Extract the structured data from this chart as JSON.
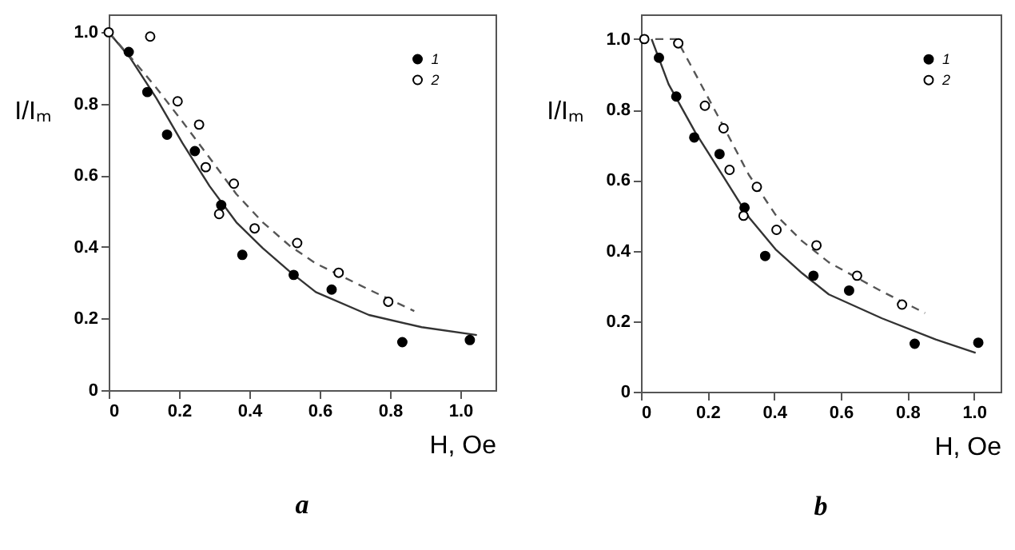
{
  "chart_data": [
    {
      "type": "scatter",
      "title": "a",
      "xlabel": "H, Oe",
      "ylabel": "I/Iₘ",
      "xlim": [
        0,
        1.1
      ],
      "ylim": [
        0,
        1.05
      ],
      "xticks": [
        0,
        0.2,
        0.4,
        0.6,
        0.8,
        {
          "value": 1,
          "label": "1.0"
        }
      ],
      "yticks": [
        0,
        0.2,
        0.4,
        0.6,
        0.8,
        {
          "value": 1,
          "label": "1.0"
        }
      ],
      "legend": "top right",
      "grid": false,
      "series": [
        {
          "name": "1",
          "marker": "circle",
          "color": "#000000",
          "x": [
            0.057,
            0.11,
            0.166,
            0.245,
            0.32,
            0.38,
            0.526,
            0.634,
            0.835,
            1.027
          ],
          "values": [
            0.945,
            0.833,
            0.714,
            0.668,
            0.517,
            0.378,
            0.322,
            0.281,
            0.134,
            0.14
          ]
        },
        {
          "name": "2",
          "marker": "circle",
          "color": "#ffffff",
          "x": [
            0,
            0.118,
            0.196,
            0.257,
            0.276,
            0.314,
            0.356,
            0.415,
            0.536,
            0.654,
            0.795
          ],
          "values": [
            1.0,
            0.988,
            0.807,
            0.742,
            0.623,
            0.492,
            0.577,
            0.452,
            0.411,
            0.328,
            0.247
          ]
        },
        {
          "type": "line",
          "marker": "none",
          "line_style": "solid",
          "color": "#333333",
          "x": [
            0,
            0.06,
            0.136,
            0.21,
            0.287,
            0.363,
            0.438,
            0.514,
            0.589,
            0.74,
            0.89,
            1.047
          ],
          "values": [
            1.0,
            0.93,
            0.815,
            0.69,
            0.57,
            0.469,
            0.397,
            0.332,
            0.274,
            0.21,
            0.176,
            0.154
          ]
        },
        {
          "type": "line",
          "marker": "none",
          "line_style": "dashed",
          "color": "#555555",
          "x": [
            0,
            0.075,
            0.136,
            0.21,
            0.287,
            0.363,
            0.438,
            0.514,
            0.589,
            0.74,
            0.869
          ],
          "values": [
            1.0,
            0.916,
            0.844,
            0.75,
            0.649,
            0.548,
            0.469,
            0.404,
            0.354,
            0.281,
            0.221
          ]
        }
      ]
    },
    {
      "type": "scatter",
      "title": "b",
      "xlabel": "H, Oe",
      "ylabel": "I/Iₘ",
      "xlim": [
        0,
        1.08
      ],
      "ylim": [
        0,
        1.07
      ],
      "xticks": [
        0,
        0.2,
        0.4,
        0.6,
        0.8,
        {
          "value": 1,
          "label": "1.0"
        }
      ],
      "yticks": [
        0,
        0.2,
        0.4,
        0.6,
        0.8,
        {
          "value": 1,
          "label": "1.0"
        }
      ],
      "legend": "top right",
      "grid": false,
      "series": [
        {
          "name": "1",
          "marker": "circle",
          "color": "#000000",
          "x": [
            0.054,
            0.106,
            0.16,
            0.236,
            0.311,
            0.373,
            0.518,
            0.625,
            0.822,
            1.013
          ],
          "values": [
            0.947,
            0.837,
            0.721,
            0.674,
            0.522,
            0.385,
            0.329,
            0.287,
            0.136,
            0.139
          ]
        },
        {
          "name": "2",
          "marker": "circle",
          "color": "#ffffff",
          "x": [
            0.01,
            0.112,
            0.192,
            0.248,
            0.266,
            0.308,
            0.348,
            0.407,
            0.527,
            0.649,
            0.784
          ],
          "values": [
            1.0,
            0.988,
            0.811,
            0.747,
            0.629,
            0.499,
            0.581,
            0.459,
            0.415,
            0.329,
            0.247
          ]
        },
        {
          "type": "line",
          "marker": "none",
          "line_style": "solid",
          "color": "#333333",
          "x": [
            0.032,
            0.083,
            0.163,
            0.244,
            0.324,
            0.404,
            0.484,
            0.564,
            0.724,
            0.885,
            1.005
          ],
          "values": [
            1.0,
            0.872,
            0.736,
            0.615,
            0.495,
            0.404,
            0.336,
            0.276,
            0.208,
            0.148,
            0.11
          ]
        },
        {
          "type": "line",
          "marker": "none",
          "line_style": "dashed",
          "color": "#555555",
          "x": [
            0,
            0.107,
            0.163,
            0.244,
            0.324,
            0.404,
            0.484,
            0.564,
            0.724,
            0.853
          ],
          "values": [
            1.0,
            1.0,
            0.902,
            0.759,
            0.615,
            0.502,
            0.427,
            0.367,
            0.284,
            0.223
          ]
        }
      ]
    }
  ]
}
